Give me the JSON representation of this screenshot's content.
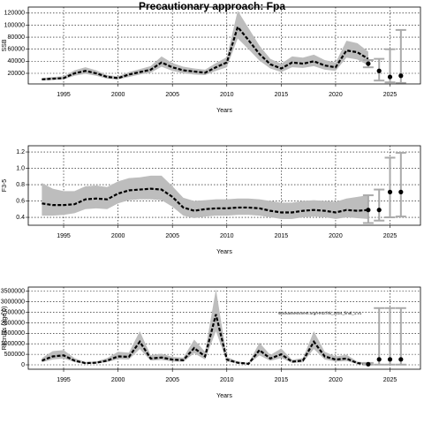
{
  "title": "Precautionary approach: Fpa",
  "chart_data": [
    {
      "type": "line",
      "ylabel": "SSB",
      "xlabel": "Years",
      "x": [
        1993,
        1994,
        1995,
        1996,
        1997,
        1998,
        1999,
        2000,
        2001,
        2002,
        2003,
        2004,
        2005,
        2006,
        2007,
        2008,
        2009,
        2010,
        2011,
        2012,
        2013,
        2014,
        2015,
        2016,
        2017,
        2018,
        2019,
        2020,
        2021,
        2022,
        2023
      ],
      "values": [
        10000,
        11000,
        12000,
        20000,
        24000,
        20000,
        14000,
        12000,
        18000,
        22000,
        26000,
        38000,
        30000,
        25000,
        23000,
        21000,
        30000,
        38000,
        97000,
        75000,
        52000,
        35000,
        28000,
        38000,
        36000,
        40000,
        33000,
        30000,
        58000,
        55000,
        44000
      ],
      "lower": [
        8000,
        9000,
        10000,
        16000,
        19000,
        16000,
        11000,
        10000,
        14000,
        18000,
        21000,
        31000,
        24000,
        20000,
        18000,
        17000,
        24000,
        30000,
        78000,
        60000,
        41000,
        28000,
        22000,
        30000,
        29000,
        32000,
        26000,
        24000,
        46000,
        43000,
        33000
      ],
      "upper": [
        12000,
        14000,
        15000,
        25000,
        30000,
        25000,
        17000,
        15000,
        22000,
        27000,
        32000,
        48000,
        37000,
        31000,
        28000,
        26000,
        37000,
        47000,
        124000,
        95000,
        66000,
        44000,
        36000,
        48000,
        46000,
        51000,
        42000,
        38000,
        74000,
        70000,
        56000
      ],
      "forecast": {
        "x": [
          2023,
          2024,
          2025,
          2026
        ],
        "values": [
          36000,
          24000,
          14000,
          16000
        ],
        "lower": [
          30000,
          8000,
          5000,
          4000
        ],
        "upper": [
          42000,
          44000,
          60000,
          92000
        ]
      },
      "xlim": [
        1991.75,
        2027.8
      ],
      "xticks": [
        1995,
        2000,
        2005,
        2010,
        2015,
        2020,
        2025
      ],
      "ylim": [
        2400,
        130000
      ],
      "yticks": [
        20000,
        40000,
        60000,
        80000,
        100000,
        120000
      ],
      "grid": true
    },
    {
      "type": "line",
      "ylabel": "F3-5",
      "xlabel": "Years",
      "x": [
        1993,
        1994,
        1995,
        1996,
        1997,
        1998,
        1999,
        2000,
        2001,
        2002,
        2003,
        2004,
        2005,
        2006,
        2007,
        2008,
        2009,
        2010,
        2011,
        2012,
        2013,
        2014,
        2015,
        2016,
        2017,
        2018,
        2019,
        2020,
        2021,
        2022,
        2023
      ],
      "values": [
        0.57,
        0.55,
        0.55,
        0.56,
        0.62,
        0.63,
        0.62,
        0.69,
        0.73,
        0.74,
        0.75,
        0.74,
        0.65,
        0.52,
        0.48,
        0.5,
        0.51,
        0.51,
        0.52,
        0.52,
        0.51,
        0.48,
        0.46,
        0.46,
        0.48,
        0.49,
        0.48,
        0.46,
        0.49,
        0.48,
        0.49
      ],
      "lower": [
        0.42,
        0.42,
        0.43,
        0.45,
        0.5,
        0.51,
        0.5,
        0.57,
        0.61,
        0.62,
        0.62,
        0.61,
        0.53,
        0.42,
        0.39,
        0.41,
        0.42,
        0.42,
        0.43,
        0.43,
        0.42,
        0.4,
        0.38,
        0.38,
        0.4,
        0.41,
        0.4,
        0.38,
        0.4,
        0.39,
        0.38
      ],
      "upper": [
        0.82,
        0.75,
        0.72,
        0.72,
        0.78,
        0.79,
        0.77,
        0.84,
        0.88,
        0.89,
        0.91,
        0.91,
        0.78,
        0.64,
        0.6,
        0.61,
        0.62,
        0.62,
        0.63,
        0.63,
        0.62,
        0.6,
        0.58,
        0.58,
        0.6,
        0.61,
        0.6,
        0.59,
        0.63,
        0.65,
        0.67
      ],
      "forecast": {
        "x": [
          2023,
          2024,
          2025,
          2026
        ],
        "values": [
          0.49,
          0.49,
          0.71,
          0.71
        ],
        "lower": [
          0.33,
          0.36,
          0.4,
          0.41
        ],
        "upper": [
          0.67,
          0.74,
          1.13,
          1.19
        ]
      },
      "xlim": [
        1991.75,
        2027.8
      ],
      "xticks": [
        1995,
        2000,
        2005,
        2010,
        2015,
        2020,
        2025
      ],
      "ylim": [
        0.303,
        1.276
      ],
      "yticks": [
        0.4,
        0.6,
        0.8,
        {
          "value": 1,
          "label": "1.0"
        },
        1.2
      ],
      "grid": true
    },
    {
      "type": "line",
      "ylabel": "Recruits (age 0)",
      "xlabel": "Years",
      "annotation": "stockassessment.org/HAD.fsk_2024_final_1.v1",
      "x": [
        1993,
        1994,
        1995,
        1996,
        1997,
        1998,
        1999,
        2000,
        2001,
        2002,
        2003,
        2004,
        2005,
        2006,
        2007,
        2008,
        2009,
        2010,
        2011,
        2012,
        2013,
        2014,
        2015,
        2016,
        2017,
        2018,
        2019,
        2020,
        2021,
        2022,
        2023
      ],
      "values": [
        200000,
        400000,
        450000,
        200000,
        80000,
        100000,
        200000,
        400000,
        380000,
        1100000,
        300000,
        350000,
        250000,
        220000,
        800000,
        400000,
        2400000,
        250000,
        100000,
        50000,
        700000,
        300000,
        500000,
        150000,
        200000,
        1100000,
        400000,
        250000,
        300000,
        80000,
        30000
      ],
      "lower": [
        120000,
        250000,
        300000,
        130000,
        50000,
        60000,
        130000,
        270000,
        250000,
        750000,
        200000,
        230000,
        160000,
        140000,
        550000,
        250000,
        1600000,
        160000,
        60000,
        30000,
        450000,
        190000,
        320000,
        90000,
        120000,
        750000,
        250000,
        150000,
        180000,
        40000,
        10000
      ],
      "upper": [
        320000,
        650000,
        700000,
        320000,
        130000,
        160000,
        320000,
        620000,
        580000,
        1600000,
        460000,
        530000,
        380000,
        340000,
        1200000,
        620000,
        3600000,
        380000,
        160000,
        90000,
        1050000,
        470000,
        780000,
        240000,
        320000,
        1600000,
        620000,
        400000,
        480000,
        160000,
        90000
      ],
      "forecast": {
        "x": [
          2023,
          2024,
          2025,
          2026
        ],
        "values": [
          30000,
          260000,
          260000,
          260000
        ],
        "lower": [
          10000,
          10000,
          10000,
          10000
        ],
        "upper": [
          90000,
          2700000,
          2700000,
          2700000
        ]
      },
      "xlim": [
        1991.75,
        2027.8
      ],
      "xticks": [
        1995,
        2000,
        2005,
        2010,
        2015,
        2020,
        2025
      ],
      "ylim": [
        -210000,
        3700000
      ],
      "yticks": [
        0,
        500000,
        1000000,
        1500000,
        2000000,
        2500000,
        3000000,
        3500000
      ],
      "grid": true
    }
  ]
}
